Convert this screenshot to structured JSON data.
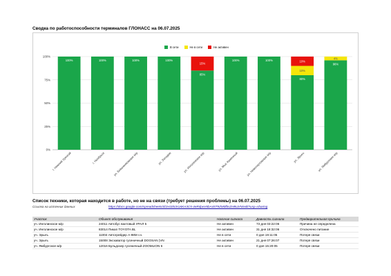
{
  "report": {
    "title": "Сводка по работоспособности терминалов ГЛОНАСС на 06.07.2025"
  },
  "chart_data": {
    "type": "bar",
    "stacked": true,
    "categories": [
      "г. Нижний Уренгой",
      "г. Ноябрьск",
      "ул. Бованенковское м/р",
      "ул. Западно",
      "ул. Инголинское м/р",
      "ул. Мыс Каменный",
      "ул. Новопортовское м/р",
      "ул. Эрьеъ",
      "ул. Ямбургское м/р"
    ],
    "series": [
      {
        "name": "В сети",
        "color": "#1aa64a",
        "values": [
          100,
          100,
          100,
          100,
          85,
          100,
          100,
          80,
          96
        ],
        "labels": [
          "100%",
          "100%",
          "100%",
          "100%",
          "85%",
          "100%",
          "100%",
          "80%",
          "96%"
        ]
      },
      {
        "name": "Не в сети",
        "color": "#f5e60a",
        "values": [
          0,
          0,
          0,
          0,
          0,
          0,
          0,
          10,
          4
        ],
        "labels": [
          "",
          "",
          "",
          "",
          "",
          "",
          "",
          "10%",
          "4%"
        ]
      },
      {
        "name": "Не активен",
        "color": "#e8120c",
        "values": [
          0,
          0,
          0,
          0,
          15,
          0,
          0,
          10,
          0
        ],
        "labels": [
          "",
          "",
          "",
          "",
          "15%",
          "",
          "",
          "10%",
          ""
        ]
      }
    ],
    "y_ticks": [
      "0%",
      "25%",
      "50%",
      "75%",
      "100%"
    ],
    "ylim": [
      0,
      100
    ],
    "grid": true,
    "legend_position": "top-center"
  },
  "list": {
    "title": "Список техники, которая находится в работе, но не на связи (требует решения проблемы) на 06.07.2025",
    "link_label": "Ссылка на источник данных",
    "link_url": "https://docs.google.com/spreadsheets/d/1H1Ek3rU4KA3C5-4eRdpeV6bA45T9ZM0fbsZH8UVN/edit?usp=sharing",
    "columns": [
      "Участок",
      "Объект обслуживания",
      "Наличие сигнала",
      "Давность сигнала",
      "Предварительная причина"
    ],
    "rows": [
      [
        "уч. Инголинское м/р",
        "24011 Автобус вахтовый УРАЛ 5",
        "Не активен",
        "73 дня 03:22:06",
        "Причина не определена"
      ],
      [
        "уч. Инголинское м/р",
        "83014 Пикап TOYOTA BL",
        "Не активен",
        "31 дня 18:32:06",
        "Отключено питание"
      ],
      [
        "уч. Эрьеъ",
        "11004 Автогрейдер А-98М г.н.",
        "Не в сети",
        "0 дня 19:11:05",
        "Потеря связи"
      ],
      [
        "уч. Эрьеъ",
        "15008 Экскаватор гусеничный DOOSAN (VN",
        "Не активен",
        "21 дня 07:26:07",
        "Потеря связи"
      ],
      [
        "уч. Ямбургское м/р",
        "12016 Бульдозер гусеничный ZOOMLION 6",
        "Не в сети",
        "0 дня 15:20:05",
        "Потеря связи"
      ]
    ]
  }
}
